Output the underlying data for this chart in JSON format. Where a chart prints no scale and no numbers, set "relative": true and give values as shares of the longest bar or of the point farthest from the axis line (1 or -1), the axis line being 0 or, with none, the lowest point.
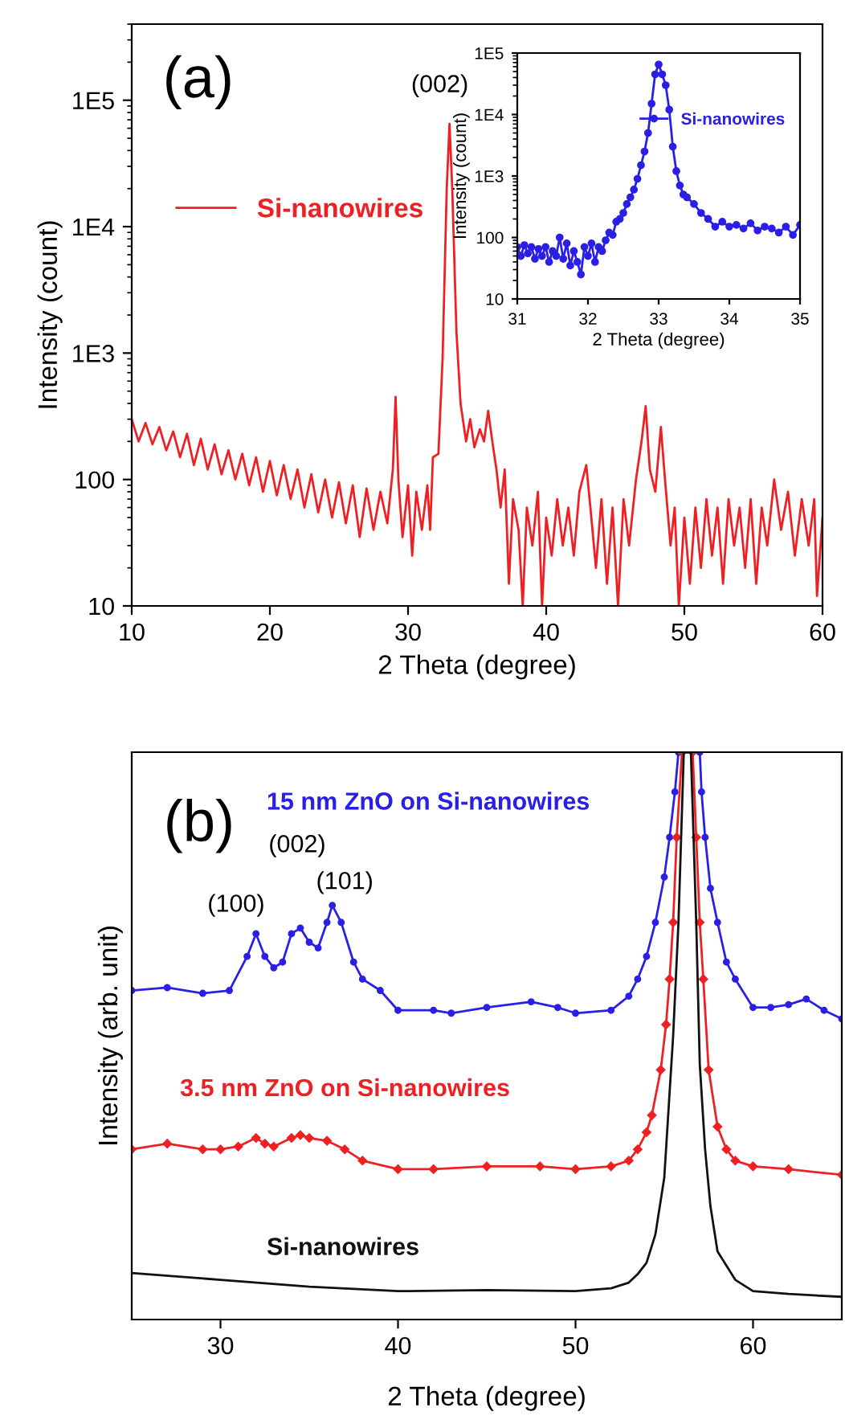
{
  "chart_data": [
    {
      "type": "line",
      "xlabel": "2 Theta (degree)",
      "ylabel": "Intensity (count)",
      "log": "y",
      "xlim": [
        10,
        60
      ],
      "ylim": [
        10,
        400000
      ],
      "xticks": [
        10,
        20,
        30,
        40,
        50,
        60
      ],
      "yticks": [
        10,
        100,
        {
          "value": 1000,
          "label": "1E3"
        },
        {
          "value": 10000,
          "label": "1E4"
        },
        {
          "value": 100000,
          "label": "1E5"
        }
      ],
      "legend": "left",
      "annotations": [
        "(a)",
        "(002)"
      ],
      "series": [
        {
          "name": "Si-nanowires",
          "color": "#ee2024",
          "marker": "none",
          "x": [
            10,
            10.5,
            11,
            11.5,
            12,
            12.5,
            13,
            13.5,
            14,
            14.5,
            15,
            15.5,
            16,
            16.5,
            17,
            17.5,
            18,
            18.5,
            19,
            19.5,
            20,
            20.5,
            21,
            21.5,
            22,
            22.5,
            23,
            23.5,
            24,
            24.5,
            25,
            25.5,
            26,
            26.5,
            27,
            27.5,
            28,
            28.5,
            28.9,
            29.1,
            29.3,
            29.6,
            30,
            30.3,
            30.6,
            31,
            31.4,
            31.6,
            31.8,
            32.2,
            32.5,
            32.8,
            33,
            33.2,
            33.5,
            33.8,
            34.2,
            34.5,
            34.8,
            35.2,
            35.5,
            35.8,
            36.1,
            36.4,
            36.7,
            37,
            37.3,
            37.6,
            38,
            38.3,
            38.6,
            39,
            39.4,
            39.7,
            40,
            40.4,
            40.8,
            41.2,
            41.6,
            42,
            42.4,
            42.9,
            43.2,
            43.6,
            44,
            44.4,
            44.8,
            45.2,
            45.6,
            46,
            46.5,
            46.9,
            47.2,
            47.5,
            47.9,
            48.3,
            48.6,
            49,
            49.3,
            49.6,
            50,
            50.4,
            50.8,
            51.2,
            51.6,
            52,
            52.4,
            52.8,
            53.2,
            53.6,
            54,
            54.4,
            54.8,
            55.2,
            55.6,
            56,
            56.5,
            57,
            57.5,
            58,
            58.5,
            59,
            59.4,
            59.6,
            60
          ],
          "values": [
            300,
            200,
            280,
            190,
            260,
            170,
            240,
            150,
            230,
            130,
            210,
            120,
            190,
            110,
            170,
            100,
            160,
            90,
            150,
            80,
            140,
            75,
            130,
            70,
            120,
            60,
            110,
            55,
            100,
            50,
            95,
            45,
            90,
            35,
            85,
            40,
            80,
            45,
            120,
            450,
            100,
            35,
            90,
            25,
            80,
            40,
            90,
            40,
            150,
            160,
            900,
            20000,
            65000,
            20000,
            1500,
            400,
            200,
            300,
            180,
            250,
            200,
            350,
            200,
            120,
            60,
            120,
            15,
            70,
            40,
            10,
            60,
            30,
            80,
            10,
            50,
            25,
            70,
            30,
            60,
            25,
            80,
            130,
            60,
            20,
            70,
            15,
            60,
            10,
            70,
            30,
            100,
            200,
            380,
            120,
            80,
            260,
            100,
            30,
            60,
            10,
            50,
            15,
            60,
            20,
            70,
            25,
            60,
            15,
            70,
            30,
            60,
            20,
            70,
            15,
            60,
            30,
            100,
            40,
            80,
            25,
            70,
            30,
            70,
            12,
            50
          ]
        }
      ]
    },
    {
      "type": "line",
      "xlabel": "2 Theta (degree)",
      "ylabel": "Intensity (count)",
      "log": "y",
      "xlim": [
        31,
        35
      ],
      "ylim": [
        10,
        100000
      ],
      "xticks": [
        31,
        32,
        33,
        34,
        35
      ],
      "yticks": [
        10,
        100,
        {
          "value": 1000,
          "label": "1E3"
        },
        {
          "value": 10000,
          "label": "1E4"
        },
        {
          "value": 100000,
          "label": "1E5"
        }
      ],
      "legend": "upper right",
      "series": [
        {
          "name": "Si-nanowires",
          "color": "#2a1fe6",
          "marker": "circle",
          "x": [
            31.0,
            31.05,
            31.1,
            31.15,
            31.2,
            31.25,
            31.3,
            31.35,
            31.4,
            31.45,
            31.5,
            31.55,
            31.6,
            31.65,
            31.7,
            31.75,
            31.8,
            31.85,
            31.9,
            31.95,
            32.0,
            32.05,
            32.1,
            32.15,
            32.2,
            32.25,
            32.3,
            32.35,
            32.4,
            32.45,
            32.5,
            32.55,
            32.6,
            32.65,
            32.7,
            32.75,
            32.8,
            32.85,
            32.9,
            32.95,
            33.0,
            33.05,
            33.1,
            33.15,
            33.2,
            33.25,
            33.3,
            33.35,
            33.4,
            33.5,
            33.6,
            33.7,
            33.8,
            33.9,
            34.0,
            34.1,
            34.2,
            34.3,
            34.4,
            34.5,
            34.6,
            34.7,
            34.8,
            34.9,
            35.0
          ],
          "values": [
            70,
            50,
            75,
            55,
            70,
            45,
            65,
            50,
            70,
            40,
            60,
            50,
            100,
            45,
            80,
            35,
            60,
            40,
            25,
            70,
            50,
            80,
            40,
            70,
            60,
            90,
            120,
            110,
            180,
            200,
            250,
            350,
            450,
            600,
            900,
            1500,
            2500,
            5000,
            15000,
            45000,
            65000,
            45000,
            30000,
            12000,
            3000,
            1200,
            700,
            500,
            450,
            350,
            250,
            200,
            150,
            180,
            150,
            160,
            140,
            170,
            130,
            150,
            140,
            120,
            150,
            110,
            160
          ]
        }
      ]
    },
    {
      "type": "line",
      "xlabel": "2 Theta (degree)",
      "ylabel": "Intensity (arb. unit)",
      "relative": true,
      "tick_labels": "x",
      "xlim": [
        25,
        65
      ],
      "xticks": [
        30,
        40,
        50,
        60
      ],
      "legend": false,
      "annotations": [
        "(b)",
        "(100)",
        "(002)",
        "(101)"
      ],
      "series": [
        {
          "name": "15 nm ZnO on Si-nanowires",
          "color": "#2a1fe6",
          "marker": "circle",
          "x": [
            25,
            27,
            29,
            30.5,
            31.5,
            32,
            32.5,
            33,
            33.5,
            34,
            34.5,
            35,
            35.5,
            36,
            36.3,
            36.8,
            37.5,
            38,
            39,
            40,
            42,
            43,
            45,
            47.5,
            49,
            50,
            52,
            53,
            53.5,
            54,
            54.5,
            55,
            55.3,
            55.6,
            55.8,
            57,
            57.1,
            57.3,
            57.6,
            58,
            58.5,
            59,
            60,
            61,
            62,
            63,
            64,
            65
          ],
          "values": [
            0.58,
            0.585,
            0.575,
            0.58,
            0.64,
            0.68,
            0.64,
            0.62,
            0.63,
            0.68,
            0.69,
            0.665,
            0.655,
            0.7,
            0.73,
            0.7,
            0.63,
            0.6,
            0.58,
            0.545,
            0.545,
            0.54,
            0.55,
            0.56,
            0.55,
            0.54,
            0.545,
            0.57,
            0.6,
            0.64,
            0.7,
            0.78,
            0.85,
            0.93,
            1.0,
            1.0,
            0.93,
            0.85,
            0.76,
            0.7,
            0.63,
            0.6,
            0.55,
            0.55,
            0.555,
            0.565,
            0.545,
            0.53
          ]
        },
        {
          "name": "3.5 nm ZnO on Si-nanowires",
          "color": "#ee2024",
          "marker": "diamond",
          "x": [
            25,
            27,
            29,
            30,
            31,
            32,
            32.5,
            33,
            34,
            34.5,
            35,
            36,
            37,
            38,
            40,
            42,
            45,
            48,
            50,
            52,
            53,
            53.5,
            54,
            54.3,
            54.8,
            55.1,
            55.3,
            55.5,
            55.7,
            56,
            56.6,
            56.8,
            57,
            57.2,
            57.5,
            58,
            58.5,
            59,
            60,
            62,
            65
          ],
          "values": [
            0.3,
            0.31,
            0.3,
            0.3,
            0.305,
            0.32,
            0.31,
            0.305,
            0.32,
            0.325,
            0.32,
            0.315,
            0.3,
            0.28,
            0.265,
            0.265,
            0.27,
            0.27,
            0.265,
            0.27,
            0.28,
            0.3,
            0.33,
            0.36,
            0.44,
            0.52,
            0.6,
            0.7,
            0.85,
            1.0,
            1.0,
            0.85,
            0.7,
            0.6,
            0.44,
            0.34,
            0.3,
            0.28,
            0.27,
            0.265,
            0.255
          ]
        },
        {
          "name": "Si-nanowires",
          "color": "#111111",
          "marker": "none",
          "x": [
            25,
            30,
            35,
            40,
            45,
            50,
            52,
            53,
            53.5,
            54,
            54.5,
            55,
            55.2,
            55.5,
            55.8,
            56.1,
            56.5,
            56.8,
            57,
            57.3,
            57.6,
            58,
            59,
            60,
            62,
            65
          ],
          "values": [
            0.082,
            0.07,
            0.058,
            0.05,
            0.052,
            0.05,
            0.055,
            0.065,
            0.08,
            0.1,
            0.15,
            0.25,
            0.35,
            0.5,
            0.7,
            1.0,
            1.0,
            0.7,
            0.45,
            0.3,
            0.2,
            0.12,
            0.07,
            0.05,
            0.045,
            0.04
          ]
        }
      ]
    }
  ]
}
